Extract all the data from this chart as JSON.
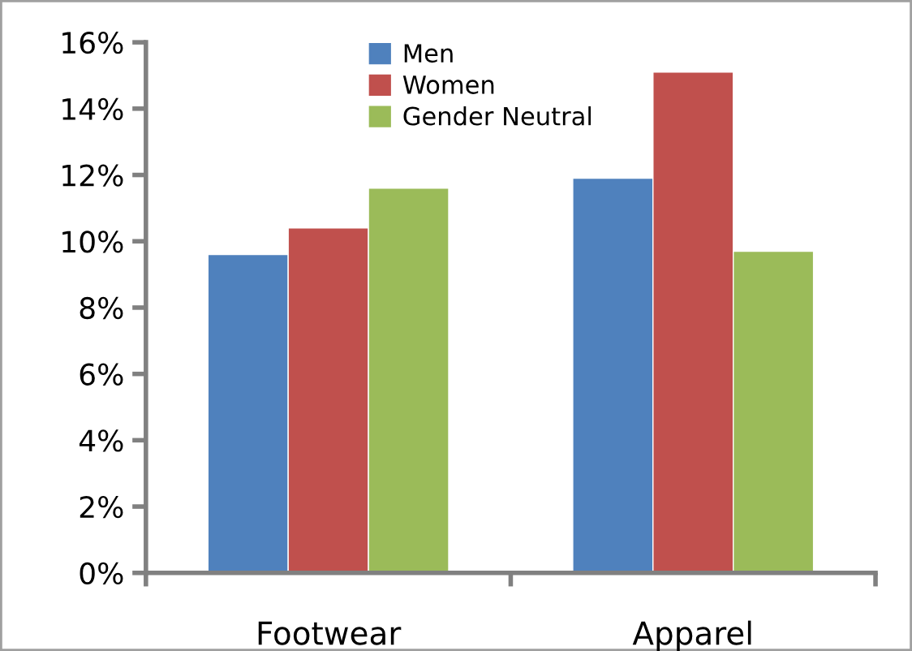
{
  "chart_data": {
    "type": "bar",
    "categories": [
      "Footwear",
      "Apparel"
    ],
    "series": [
      {
        "name": "Men",
        "color": "#4f81bd",
        "values": [
          9.6,
          11.9
        ]
      },
      {
        "name": "Women",
        "color": "#c0504d",
        "values": [
          10.4,
          15.1
        ]
      },
      {
        "name": "Gender Neutral",
        "color": "#9bbb59",
        "values": [
          11.6,
          9.7
        ]
      }
    ],
    "ylim": [
      0,
      16
    ],
    "yticks": [
      {
        "value": 0,
        "label": "0%"
      },
      {
        "value": 2,
        "label": "2%"
      },
      {
        "value": 4,
        "label": "4%"
      },
      {
        "value": 6,
        "label": "6%"
      },
      {
        "value": 8,
        "label": "8%"
      },
      {
        "value": 10,
        "label": "10%"
      },
      {
        "value": 12,
        "label": "12%"
      },
      {
        "value": 14,
        "label": "14%"
      },
      {
        "value": 16,
        "label": "16%"
      }
    ],
    "grid": false,
    "legend": "top"
  }
}
